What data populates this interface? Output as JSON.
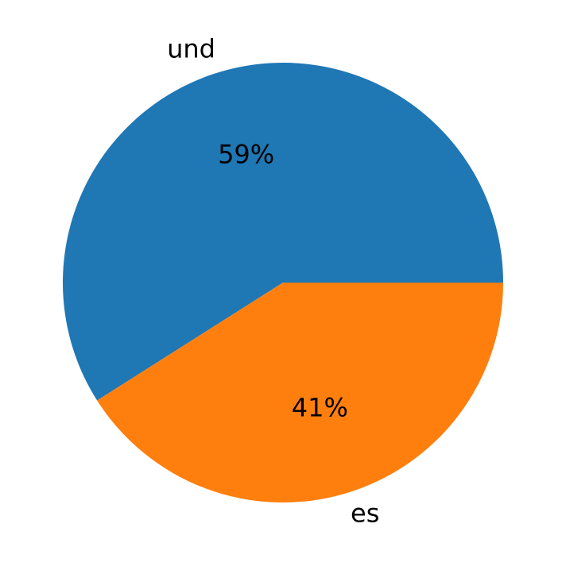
{
  "chart_data": {
    "type": "pie",
    "categories": [
      "und",
      "es"
    ],
    "values": [
      59,
      41
    ],
    "value_labels": [
      "59%",
      "41%"
    ],
    "colors": [
      "#1f77b4",
      "#ff7f0e"
    ],
    "start_angle": 0,
    "counterclock": true
  }
}
